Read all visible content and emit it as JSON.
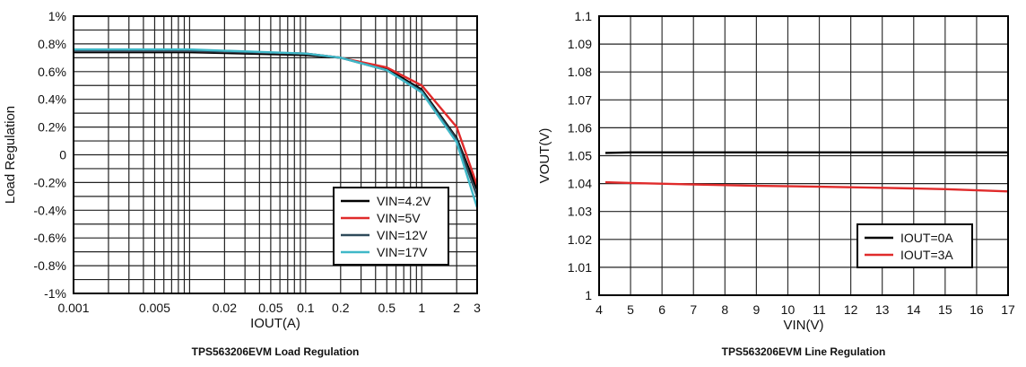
{
  "chart_data": [
    {
      "type": "line",
      "caption": "TPS563206EVM Load Regulation",
      "xlabel": "IOUT(A)",
      "ylabel": "Load Regulation",
      "xscale": "log",
      "xlim": [
        0.001,
        3
      ],
      "ylim": [
        -1,
        1
      ],
      "xticks": [
        "0.001",
        "0.005",
        "0.02",
        "0.05",
        "0.1",
        "0.2",
        "0.5",
        "1",
        "2",
        "3"
      ],
      "xtick_values": [
        0.001,
        0.005,
        0.02,
        0.05,
        0.1,
        0.2,
        0.5,
        1,
        2,
        3
      ],
      "yticks": [
        "-1%",
        "-0.8%",
        "-0.6%",
        "-0.4%",
        "-0.2%",
        "0",
        "0.2%",
        "0.4%",
        "0.6%",
        "0.8%",
        "1%"
      ],
      "ytick_values": [
        -1,
        -0.8,
        -0.6,
        -0.4,
        -0.2,
        0,
        0.2,
        0.4,
        0.6,
        0.8,
        1
      ],
      "grid": true,
      "legend_position": "bottom-right",
      "x": [
        0.001,
        0.01,
        0.1,
        0.2,
        0.5,
        1,
        2,
        3
      ],
      "series": [
        {
          "name": "VIN=4.2V",
          "color": "#000000",
          "values": [
            0.74,
            0.74,
            0.72,
            0.7,
            0.62,
            0.47,
            0.12,
            -0.25
          ]
        },
        {
          "name": "VIN=5V",
          "color": "#e02b2b",
          "values": [
            0.75,
            0.75,
            0.73,
            0.7,
            0.63,
            0.5,
            0.2,
            -0.22
          ]
        },
        {
          "name": "VIN=12V",
          "color": "#2e4a5a",
          "values": [
            0.75,
            0.75,
            0.73,
            0.7,
            0.61,
            0.46,
            0.11,
            -0.3
          ]
        },
        {
          "name": "VIN=17V",
          "color": "#3fb8c8",
          "values": [
            0.76,
            0.76,
            0.73,
            0.7,
            0.61,
            0.45,
            0.09,
            -0.38
          ]
        }
      ]
    },
    {
      "type": "line",
      "caption": "TPS563206EVM Line Regulation",
      "xlabel": "VIN(V)",
      "ylabel": "VOUT(V)",
      "xlim": [
        4,
        17
      ],
      "ylim": [
        1,
        1.1
      ],
      "xticks": [
        "4",
        "5",
        "6",
        "7",
        "8",
        "9",
        "10",
        "11",
        "12",
        "13",
        "14",
        "15",
        "16",
        "17"
      ],
      "yticks": [
        "1",
        "1.01",
        "1.02",
        "1.03",
        "1.04",
        "1.05",
        "1.06",
        "1.07",
        "1.08",
        "1.09",
        "1.1"
      ],
      "grid": true,
      "legend_position": "bottom-right",
      "x": [
        4.2,
        5,
        7,
        9,
        11,
        13,
        15,
        17
      ],
      "series": [
        {
          "name": "IOUT=0A",
          "color": "#000000",
          "values": [
            1.051,
            1.0512,
            1.0512,
            1.0512,
            1.0512,
            1.0512,
            1.0512,
            1.0512
          ]
        },
        {
          "name": "IOUT=3A",
          "color": "#e02b2b",
          "values": [
            1.0405,
            1.0402,
            1.0397,
            1.0392,
            1.0389,
            1.0385,
            1.038,
            1.0372
          ]
        }
      ]
    }
  ]
}
